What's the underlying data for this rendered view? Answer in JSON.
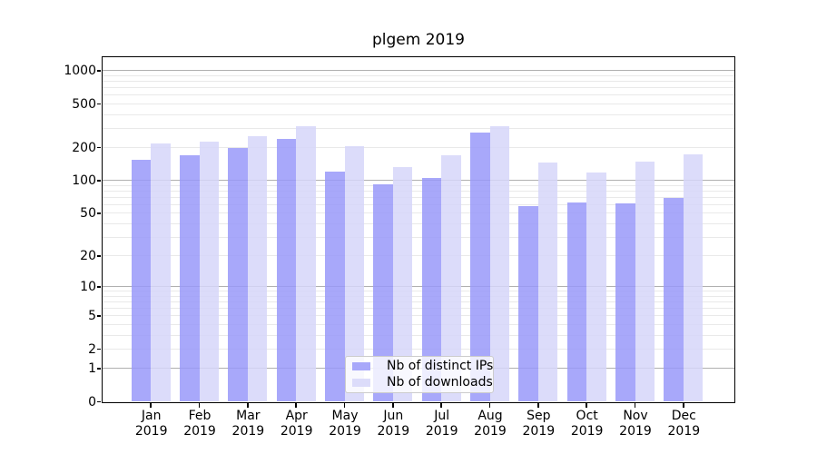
{
  "chart_data": {
    "type": "bar",
    "title": "plgem 2019",
    "categories": [
      "Jan",
      "Feb",
      "Mar",
      "Apr",
      "May",
      "Jun",
      "Jul",
      "Aug",
      "Sep",
      "Oct",
      "Nov",
      "Dec"
    ],
    "category_sub_label": "2019",
    "series": [
      {
        "name": "Nb of distinct IPs",
        "color": "#9999f9",
        "alpha": 0.85,
        "values": [
          154,
          170,
          199,
          242,
          120,
          92,
          105,
          273,
          58,
          63,
          62,
          69
        ]
      },
      {
        "name": "Nb of downloads",
        "color": "#d6d6f9",
        "alpha": 0.85,
        "values": [
          216,
          225,
          255,
          310,
          207,
          132,
          170,
          310,
          147,
          118,
          148,
          175
        ]
      }
    ],
    "yscale": "log1p",
    "ylim": [
      0,
      1336
    ],
    "yticks": [
      1000,
      500,
      200,
      100,
      50,
      20,
      10,
      5,
      2,
      1,
      0
    ],
    "grid": {
      "major": [
        1,
        10,
        100,
        1000
      ],
      "minor_base": [
        2,
        3,
        4,
        5,
        6,
        7,
        8,
        9
      ],
      "minor_decades": [
        1,
        10,
        100
      ]
    },
    "legend": {
      "position": "lower-center"
    }
  }
}
